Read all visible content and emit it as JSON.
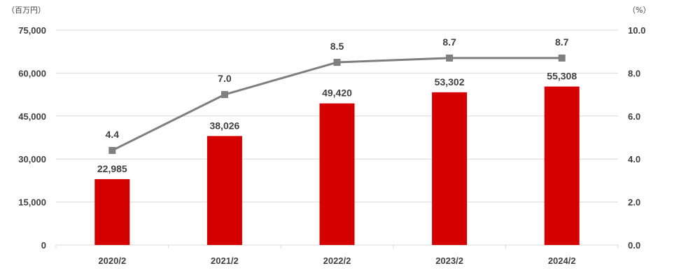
{
  "chart_data": {
    "type": "bar",
    "categories": [
      "2020/2",
      "2021/2",
      "2022/2",
      "2023/2",
      "2024/2"
    ],
    "series": [
      {
        "type": "bar",
        "axis": "left",
        "values": [
          22985,
          38026,
          49420,
          53302,
          55308
        ],
        "labels": [
          "22,985",
          "38,026",
          "49,420",
          "53,302",
          "55,308"
        ],
        "color": "#d40000"
      },
      {
        "type": "line",
        "axis": "right",
        "values": [
          4.4,
          7.0,
          8.5,
          8.7,
          8.7
        ],
        "labels": [
          "4.4",
          "7.0",
          "8.5",
          "8.7",
          "8.7"
        ],
        "color": "#7f7f7f",
        "marker": "square"
      }
    ],
    "y_left": {
      "unit": "（百万円）",
      "ylim": [
        0,
        75000
      ],
      "ticks": [
        0,
        15000,
        30000,
        45000,
        60000,
        75000
      ],
      "tick_labels": [
        "0",
        "15,000",
        "30,000",
        "45,000",
        "60,000",
        "75,000"
      ]
    },
    "y_right": {
      "unit": "（%）",
      "ylim": [
        0,
        10
      ],
      "ticks": [
        0,
        2,
        4,
        6,
        8,
        10
      ],
      "tick_labels": [
        "0.0",
        "2.0",
        "4.0",
        "6.0",
        "8.0",
        "10.0"
      ]
    },
    "grid": true,
    "gridline_color": "#d9d9d9",
    "axis_text_color": "#404040"
  }
}
